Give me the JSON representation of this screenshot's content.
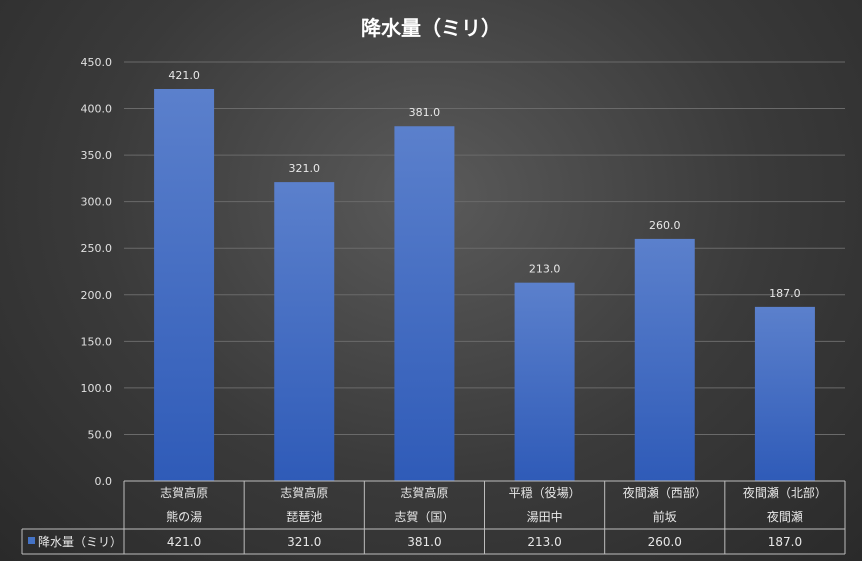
{
  "chart_data": {
    "type": "bar",
    "title": "降水量（ミリ）",
    "categories": [
      [
        "志賀高原",
        "熊の湯"
      ],
      [
        "志賀高原",
        "琵琶池"
      ],
      [
        "志賀高原",
        "志賀（国）"
      ],
      [
        "平穏（役場）",
        "湯田中"
      ],
      [
        "夜間瀬（西部）",
        "前坂"
      ],
      [
        "夜間瀬（北部）",
        "夜間瀬"
      ]
    ],
    "series": [
      {
        "name": "降水量（ミリ）",
        "values": [
          421.0,
          321.0,
          381.0,
          213.0,
          260.0,
          187.0
        ],
        "labels": [
          "421.0",
          "321.0",
          "381.0",
          "213.0",
          "260.0",
          "187.0"
        ]
      }
    ],
    "ylim": [
      0,
      450
    ],
    "yticks": [
      "0.0",
      "50.0",
      "100.0",
      "150.0",
      "200.0",
      "250.0",
      "300.0",
      "350.0",
      "400.0",
      "450.0"
    ],
    "grid": true,
    "legend": "data-table",
    "bar_color": "#4472c4"
  }
}
